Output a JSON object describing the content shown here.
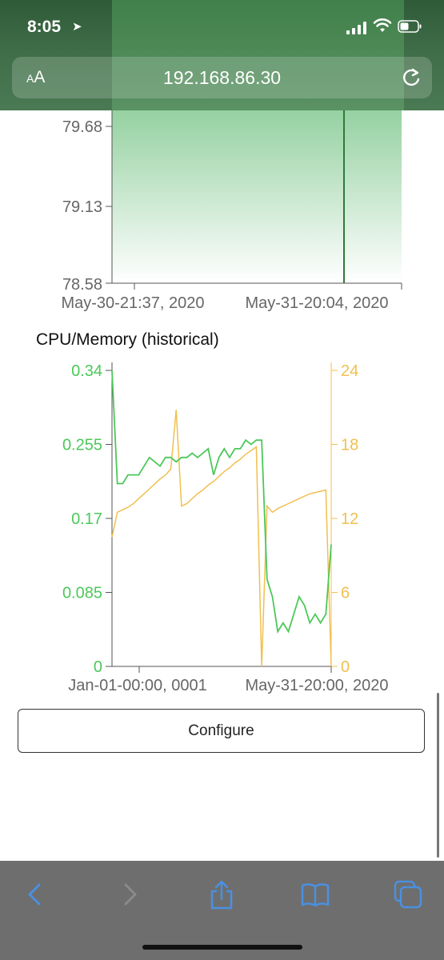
{
  "status_bar": {
    "time": "8:05"
  },
  "url_bar": {
    "aa": "A",
    "aa_large": "A",
    "url": "192.168.86.30"
  },
  "chart1": {
    "y_ticks": [
      "79.68",
      "79.13",
      "78.58"
    ],
    "x_ticks": [
      "May-30-21:37, 2020",
      "May-31-20:04, 2020"
    ],
    "colors": {
      "area": "#5cb86e",
      "line": "#2f7a3a"
    }
  },
  "chart2": {
    "title": "CPU/Memory (historical)",
    "left_ticks": [
      "0.34",
      "0.255",
      "0.17",
      "0.085",
      "0"
    ],
    "right_ticks": [
      "24",
      "18",
      "12",
      "6",
      "0"
    ],
    "x_ticks": [
      "Jan-01-00:00, 0001",
      "May-31-20:00, 2020"
    ],
    "colors": {
      "left": "#4cc85a",
      "right": "#f0c050"
    }
  },
  "chart_data": [
    {
      "type": "area",
      "y_range": [
        78.58,
        79.68
      ],
      "x_ticks": [
        "May-30-21:37, 2020",
        "May-31-20:04, 2020"
      ],
      "series": [
        {
          "values": [
            79.68,
            79.68
          ]
        }
      ]
    },
    {
      "type": "line",
      "title": "CPU/Memory (historical)",
      "y_left_range": [
        0,
        0.34
      ],
      "y_right_range": [
        0,
        24
      ],
      "x_ticks": [
        "Jan-01-00:00, 0001",
        "May-31-20:00, 2020"
      ],
      "series": [
        {
          "axis": "left",
          "color": "#4cc85a",
          "values": [
            0.34,
            0.21,
            0.21,
            0.22,
            0.22,
            0.22,
            0.23,
            0.24,
            0.235,
            0.23,
            0.24,
            0.24,
            0.235,
            0.24,
            0.24,
            0.245,
            0.24,
            0.245,
            0.25,
            0.22,
            0.24,
            0.25,
            0.24,
            0.25,
            0.25,
            0.26,
            0.255,
            0.26,
            0.26,
            0.1,
            0.08,
            0.04,
            0.05,
            0.04,
            0.06,
            0.08,
            0.07,
            0.05,
            0.06,
            0.05,
            0.06,
            0.14
          ]
        },
        {
          "axis": "right",
          "color": "#f0c050",
          "values": [
            10.5,
            12.5,
            12.7,
            12.9,
            13.2,
            13.6,
            14.0,
            14.4,
            14.8,
            15.2,
            15.5,
            16.0,
            20.8,
            13.0,
            13.2,
            13.6,
            14.0,
            14.3,
            14.7,
            15.0,
            15.4,
            15.8,
            16.1,
            16.5,
            16.8,
            17.2,
            17.5,
            17.8,
            0.0,
            13.0,
            12.5,
            12.8,
            13.0,
            13.2,
            13.4,
            13.6,
            13.8,
            14.0,
            14.1,
            14.2,
            14.3,
            0.0
          ]
        }
      ]
    }
  ],
  "configure": {
    "label": "Configure"
  }
}
